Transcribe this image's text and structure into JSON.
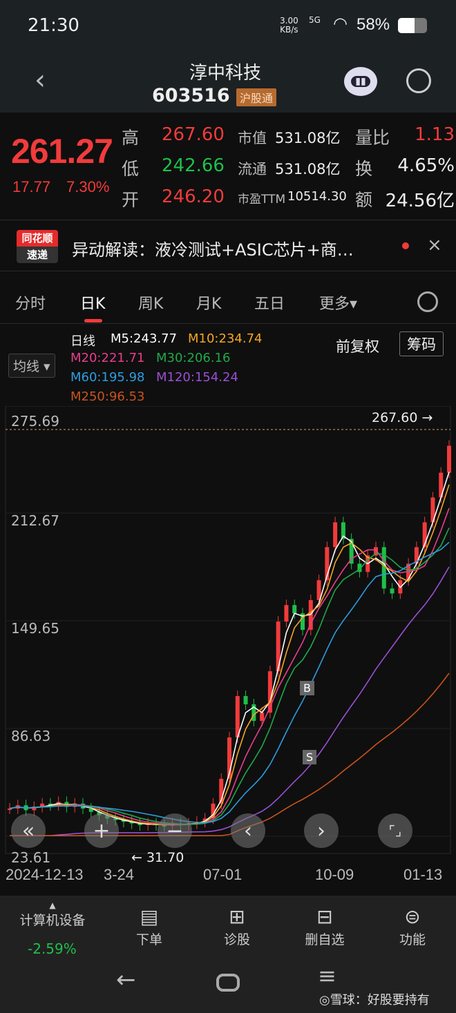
{
  "status": {
    "time": "21:30",
    "net_speed": "3.00",
    "net_unit": "KB/s",
    "network": "5G",
    "battery": "58%"
  },
  "header": {
    "name": "淳中科技",
    "code": "603516",
    "tag": "沪股通",
    "back_icon": "chevron-left-icon",
    "robot_icon": "robot-icon",
    "search_icon": "search-icon"
  },
  "quote": {
    "price": "261.27",
    "change": "17.77",
    "change_pct": "7.30%",
    "rows": [
      {
        "l1": "高",
        "v1": "267.60",
        "l2": "市值",
        "v2": "531.08亿",
        "l3": "量比",
        "v3": "1.13"
      },
      {
        "l1": "低",
        "v1": "242.66",
        "l2": "流通",
        "v2": "531.08亿",
        "l3": "换",
        "v3": "4.65%"
      },
      {
        "l1": "开",
        "v1": "246.20",
        "l2": "市盈TTM",
        "v2": "10514.30",
        "l3": "额",
        "v3": "24.56亿"
      }
    ]
  },
  "news": {
    "badge_top": "同花顺",
    "badge_bottom": "速递",
    "text": "异动解读：液冷测试+ASIC芯片+商…"
  },
  "tabs": [
    {
      "label": "分时"
    },
    {
      "label": "日K",
      "active": true
    },
    {
      "label": "周K"
    },
    {
      "label": "月K"
    },
    {
      "label": "五日"
    },
    {
      "label": "更多▾"
    }
  ],
  "chart_controls": {
    "ma_select": "均线 ▾",
    "fq": "前复权",
    "chip": "筹码"
  },
  "ma": {
    "label": "日线",
    "m5": "M5:243.77",
    "m10": "M10:234.74",
    "m20": "M20:221.71",
    "m30": "M30:206.16",
    "m60": "M60:195.98",
    "m120": "M120:154.24",
    "m250": "M250:96.53"
  },
  "colors": {
    "up": "#f23b3b",
    "down": "#1fbf4a",
    "m5": "#ffffff",
    "m10": "#f5a623",
    "m20": "#e83e8c",
    "m30": "#20a84a",
    "m60": "#2d9de0",
    "m120": "#9b4fd6",
    "m250": "#c9531c"
  },
  "chart_data": {
    "type": "candlestick",
    "x_ticks": [
      "2024-12-13",
      "3-24",
      "07-01",
      "10-09",
      "01-13"
    ],
    "y_ticks": [
      275.69,
      212.67,
      149.65,
      86.63,
      23.61
    ],
    "ylim": [
      23.61,
      275.69
    ],
    "high_label": "267.60",
    "low_label": "31.70",
    "markers": [
      "B",
      "S"
    ],
    "close": [
      42,
      44,
      41,
      43,
      45,
      44,
      46,
      43,
      45,
      42,
      40,
      38,
      36,
      35,
      34,
      33,
      32,
      33,
      32,
      31.7,
      33,
      32,
      33,
      34,
      36,
      45,
      60,
      85,
      110,
      105,
      95,
      100,
      125,
      155,
      165,
      160,
      150,
      168,
      180,
      200,
      215,
      205,
      190,
      185,
      195,
      200,
      175,
      172,
      180,
      190,
      200,
      215,
      230,
      245,
      261.27
    ]
  }
}
